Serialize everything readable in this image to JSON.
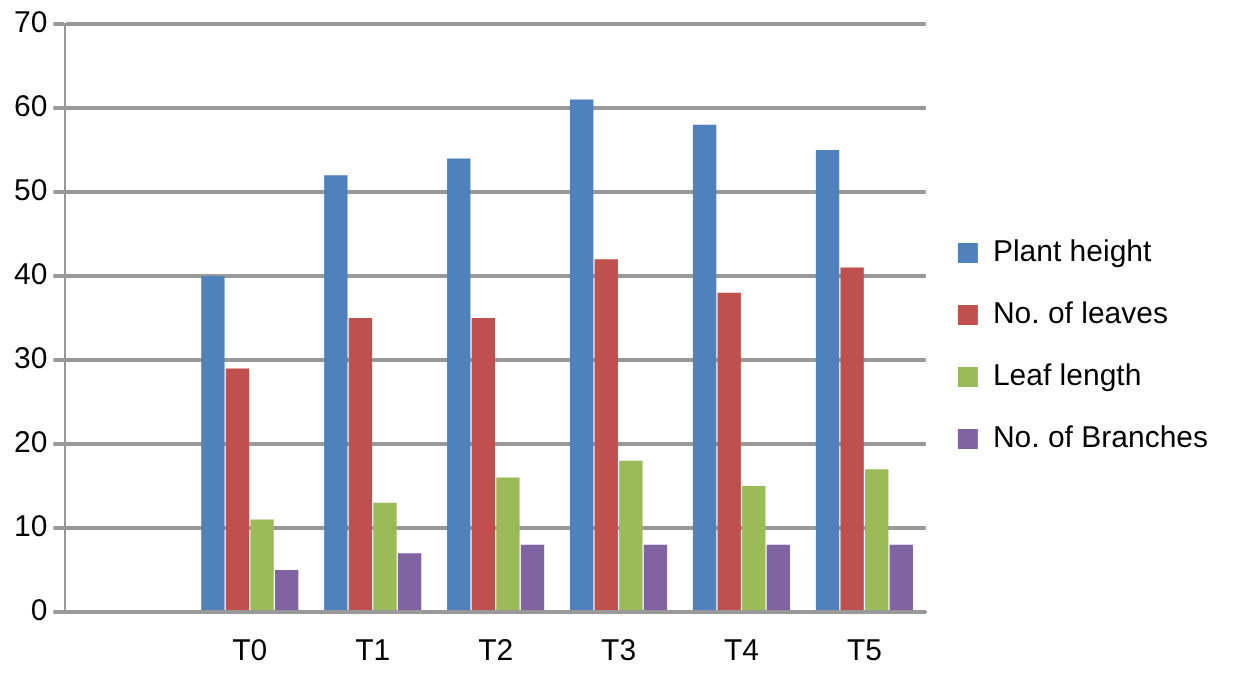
{
  "chart_data": {
    "type": "bar",
    "categories": [
      null,
      "T0",
      "T1",
      "T2",
      "T3",
      "T4",
      "T5"
    ],
    "series": [
      {
        "name": "Plant height",
        "color": "#4f81bd",
        "values": [
          null,
          40,
          52,
          54,
          61,
          58,
          55
        ]
      },
      {
        "name": "No. of leaves",
        "color": "#c0504d",
        "values": [
          null,
          29,
          35,
          35,
          42,
          38,
          41
        ]
      },
      {
        "name": "Leaf length",
        "color": "#9bbb59",
        "values": [
          null,
          11,
          13,
          16,
          18,
          15,
          17
        ]
      },
      {
        "name": "No. of Branches",
        "color": "#8064a2",
        "values": [
          null,
          5,
          7,
          8,
          8,
          8,
          8
        ]
      }
    ],
    "ylim": [
      0,
      70
    ],
    "yticks": [
      0,
      10,
      20,
      30,
      40,
      50,
      60,
      70
    ],
    "grid": "y",
    "legend": "right"
  }
}
